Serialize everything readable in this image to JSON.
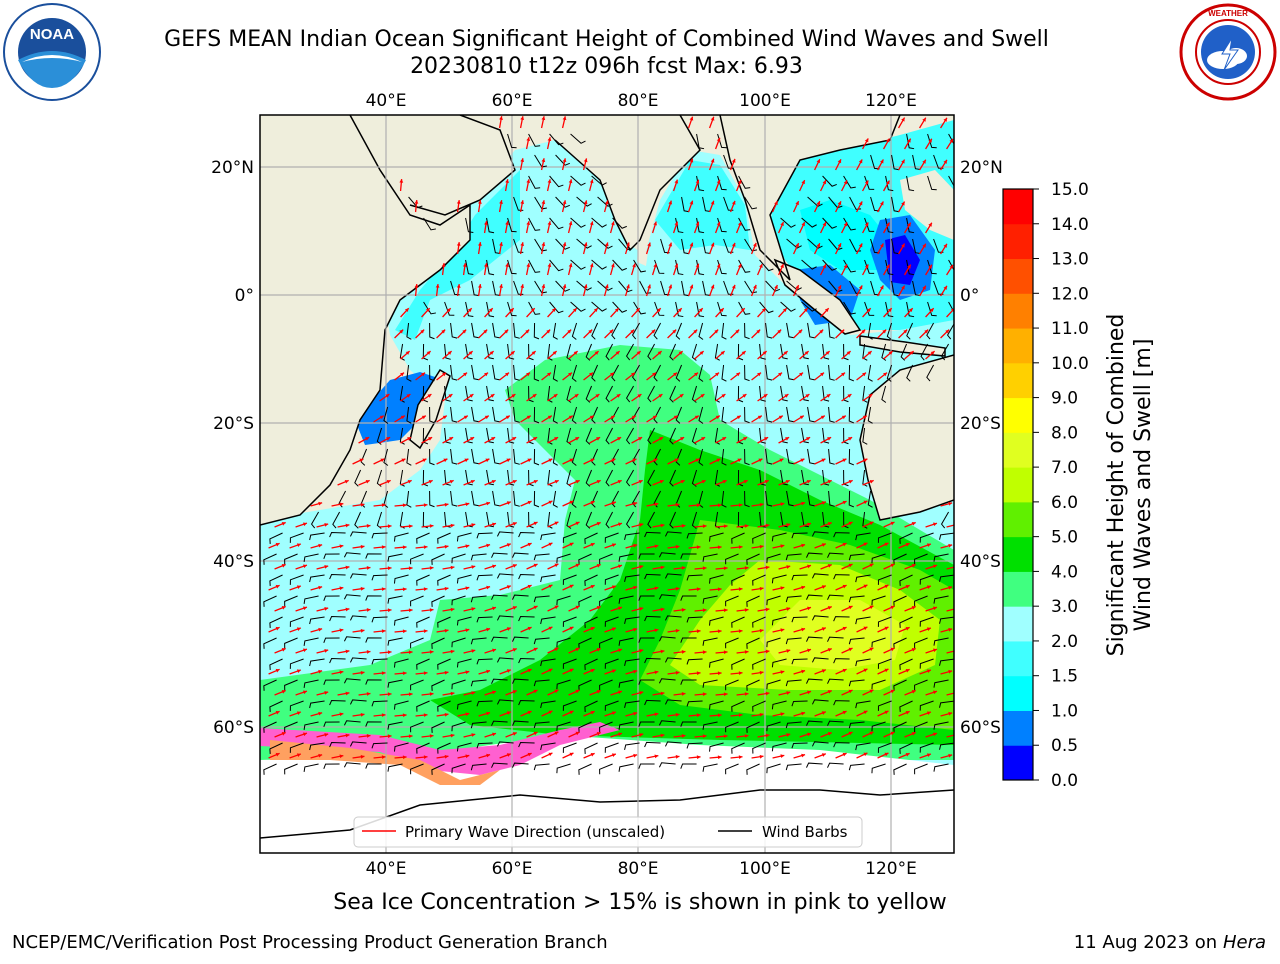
{
  "header": {
    "title_line1": "GEFS MEAN Indian Ocean Significant Height of Combined Wind Waves and Swell",
    "title_line2": "20230810 t12z 096h fcst   Max: 6.93"
  },
  "logos": {
    "left": {
      "icon": "noaa-logo-icon",
      "text": "NOAA",
      "ring_top": "NATIONAL OCEANIC AND ATMOSPHERIC ADMINISTRATION",
      "ring_bottom": "U.S. DEPARTMENT OF COMMERCE"
    },
    "right": {
      "icon": "nws-logo-icon",
      "ring": "NATIONAL WEATHER SERVICE"
    }
  },
  "map": {
    "lon_range": [
      20,
      130
    ],
    "lat_range": [
      -74,
      27
    ],
    "lon_ticks": [
      "40°E",
      "60°E",
      "80°E",
      "100°E",
      "120°E"
    ],
    "lat_ticks": [
      "20°N",
      "0°",
      "20°S",
      "40°S",
      "60°S"
    ],
    "grid": true,
    "land_color": "#efeedc",
    "legend": [
      {
        "label": "Primary Wave Direction (unscaled)",
        "color": "#ff0000"
      },
      {
        "label": "Wind Barbs",
        "color": "#000000"
      }
    ],
    "legend_position": "bottom-center"
  },
  "colorbar": {
    "label_line1": "Significant Height of Combined",
    "label_line2": "Wind Waves and Swell [m]",
    "ticks": [
      "15.0",
      "14.0",
      "13.0",
      "12.0",
      "11.0",
      "10.0",
      "9.0",
      "8.0",
      "7.0",
      "6.0",
      "5.0",
      "4.0",
      "3.0",
      "2.0",
      "1.5",
      "1.0",
      "0.5",
      "0.0"
    ],
    "colors_bottom_to_top": [
      "#0000ff",
      "#0080ff",
      "#00ffff",
      "#40ffff",
      "#a0ffff",
      "#40ff80",
      "#00e000",
      "#60f000",
      "#c0ff00",
      "#e0ff20",
      "#ffff00",
      "#ffd000",
      "#ffb000",
      "#ff8000",
      "#ff5000",
      "#ff2000",
      "#ff0000"
    ]
  },
  "footer": {
    "note": "Sea Ice Concentration > 15% is shown in pink to yellow",
    "credit": "NCEP/EMC/Verification Post Processing Product Generation Branch",
    "date": "11 Aug 2023 on",
    "host": "Hera"
  }
}
